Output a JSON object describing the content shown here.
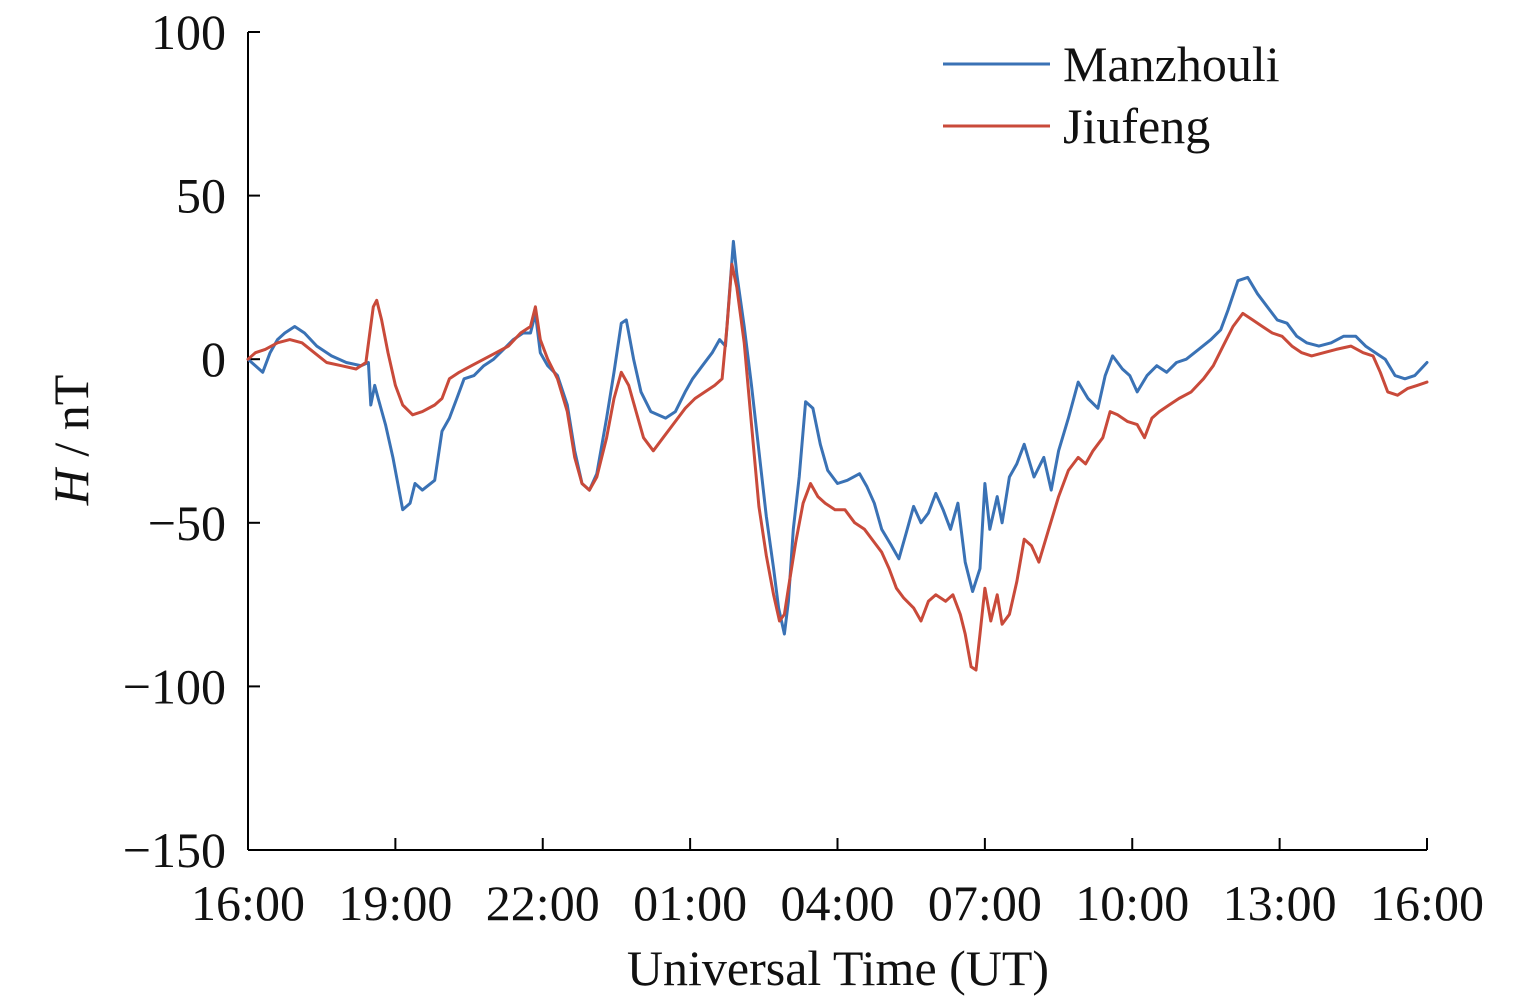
{
  "chart_data": {
    "type": "line",
    "xlabel": "Universal Time (UT)",
    "ylabel_italic": "H",
    "ylabel_rest": " / nT",
    "x_ticks": [
      "16:00",
      "19:00",
      "22:00",
      "01:00",
      "04:00",
      "07:00",
      "10:00",
      "13:00",
      "16:00"
    ],
    "x_tick_hours": [
      0,
      3,
      6,
      9,
      12,
      15,
      18,
      21,
      24
    ],
    "xlim": [
      0,
      24
    ],
    "y_ticks": [
      100,
      50,
      0,
      -50,
      -100,
      -150
    ],
    "y_tick_labels": [
      "100",
      "50",
      "0",
      "−50",
      "−100",
      "−150"
    ],
    "ylim": [
      -150,
      100
    ],
    "grid": false,
    "legend_position": "top-right",
    "series": [
      {
        "name": "Manzhouli",
        "color": "#3a72b5",
        "points": [
          [
            0.0,
            0
          ],
          [
            0.15,
            -2
          ],
          [
            0.3,
            -4
          ],
          [
            0.45,
            2
          ],
          [
            0.6,
            6
          ],
          [
            0.75,
            8
          ],
          [
            0.95,
            10
          ],
          [
            1.15,
            8
          ],
          [
            1.4,
            4
          ],
          [
            1.7,
            1
          ],
          [
            2.0,
            -1
          ],
          [
            2.3,
            -2
          ],
          [
            2.45,
            -1
          ],
          [
            2.5,
            -14
          ],
          [
            2.58,
            -8
          ],
          [
            2.65,
            -12
          ],
          [
            2.8,
            -20
          ],
          [
            2.95,
            -30
          ],
          [
            3.05,
            -38
          ],
          [
            3.15,
            -46
          ],
          [
            3.3,
            -44
          ],
          [
            3.4,
            -38
          ],
          [
            3.55,
            -40
          ],
          [
            3.8,
            -37
          ],
          [
            3.95,
            -22
          ],
          [
            4.1,
            -18
          ],
          [
            4.25,
            -12
          ],
          [
            4.4,
            -6
          ],
          [
            4.6,
            -5
          ],
          [
            4.8,
            -2
          ],
          [
            5.0,
            0
          ],
          [
            5.2,
            3
          ],
          [
            5.4,
            6
          ],
          [
            5.6,
            8
          ],
          [
            5.75,
            8
          ],
          [
            5.85,
            14
          ],
          [
            5.95,
            2
          ],
          [
            6.1,
            -2
          ],
          [
            6.3,
            -5
          ],
          [
            6.5,
            -14
          ],
          [
            6.65,
            -28
          ],
          [
            6.8,
            -38
          ],
          [
            6.95,
            -40
          ],
          [
            7.1,
            -35
          ],
          [
            7.3,
            -18
          ],
          [
            7.45,
            -4
          ],
          [
            7.6,
            11
          ],
          [
            7.7,
            12
          ],
          [
            7.85,
            0
          ],
          [
            8.0,
            -10
          ],
          [
            8.2,
            -16
          ],
          [
            8.5,
            -18
          ],
          [
            8.7,
            -16
          ],
          [
            8.9,
            -10
          ],
          [
            9.05,
            -6
          ],
          [
            9.25,
            -2
          ],
          [
            9.45,
            2
          ],
          [
            9.6,
            6
          ],
          [
            9.72,
            4
          ],
          [
            9.8,
            20
          ],
          [
            9.88,
            36
          ],
          [
            9.95,
            26
          ],
          [
            10.1,
            10
          ],
          [
            10.25,
            -8
          ],
          [
            10.4,
            -28
          ],
          [
            10.55,
            -48
          ],
          [
            10.7,
            -64
          ],
          [
            10.8,
            -76
          ],
          [
            10.92,
            -84
          ],
          [
            11.0,
            -74
          ],
          [
            11.1,
            -52
          ],
          [
            11.22,
            -36
          ],
          [
            11.35,
            -13
          ],
          [
            11.5,
            -15
          ],
          [
            11.65,
            -26
          ],
          [
            11.8,
            -34
          ],
          [
            12.0,
            -38
          ],
          [
            12.2,
            -37
          ],
          [
            12.45,
            -35
          ],
          [
            12.6,
            -39
          ],
          [
            12.75,
            -44
          ],
          [
            12.9,
            -52
          ],
          [
            13.1,
            -57
          ],
          [
            13.25,
            -61
          ],
          [
            13.4,
            -53
          ],
          [
            13.55,
            -45
          ],
          [
            13.7,
            -50
          ],
          [
            13.85,
            -47
          ],
          [
            14.0,
            -41
          ],
          [
            14.15,
            -46
          ],
          [
            14.3,
            -52
          ],
          [
            14.45,
            -44
          ],
          [
            14.6,
            -62
          ],
          [
            14.75,
            -71
          ],
          [
            14.9,
            -64
          ],
          [
            15.0,
            -38
          ],
          [
            15.1,
            -52
          ],
          [
            15.25,
            -42
          ],
          [
            15.35,
            -50
          ],
          [
            15.5,
            -36
          ],
          [
            15.65,
            -32
          ],
          [
            15.8,
            -26
          ],
          [
            16.0,
            -36
          ],
          [
            16.2,
            -30
          ],
          [
            16.35,
            -40
          ],
          [
            16.5,
            -28
          ],
          [
            16.7,
            -18
          ],
          [
            16.9,
            -7
          ],
          [
            17.1,
            -12
          ],
          [
            17.3,
            -15
          ],
          [
            17.45,
            -5
          ],
          [
            17.6,
            1
          ],
          [
            17.8,
            -3
          ],
          [
            17.95,
            -5
          ],
          [
            18.1,
            -10
          ],
          [
            18.3,
            -5
          ],
          [
            18.5,
            -2
          ],
          [
            18.7,
            -4
          ],
          [
            18.9,
            -1
          ],
          [
            19.1,
            0
          ],
          [
            19.35,
            3
          ],
          [
            19.6,
            6
          ],
          [
            19.8,
            9
          ],
          [
            19.95,
            15
          ],
          [
            20.15,
            24
          ],
          [
            20.35,
            25
          ],
          [
            20.55,
            20
          ],
          [
            20.75,
            16
          ],
          [
            20.95,
            12
          ],
          [
            21.15,
            11
          ],
          [
            21.35,
            7
          ],
          [
            21.55,
            5
          ],
          [
            21.8,
            4
          ],
          [
            22.05,
            5
          ],
          [
            22.3,
            7
          ],
          [
            22.55,
            7
          ],
          [
            22.75,
            4
          ],
          [
            22.95,
            2
          ],
          [
            23.15,
            0
          ],
          [
            23.35,
            -5
          ],
          [
            23.55,
            -6
          ],
          [
            23.75,
            -5
          ],
          [
            24.0,
            -1
          ]
        ]
      },
      {
        "name": "Jiufeng",
        "color": "#c94a3a",
        "points": [
          [
            0.0,
            0
          ],
          [
            0.15,
            2
          ],
          [
            0.35,
            3
          ],
          [
            0.6,
            5
          ],
          [
            0.85,
            6
          ],
          [
            1.1,
            5
          ],
          [
            1.35,
            2
          ],
          [
            1.6,
            -1
          ],
          [
            1.9,
            -2
          ],
          [
            2.2,
            -3
          ],
          [
            2.4,
            -1
          ],
          [
            2.48,
            8
          ],
          [
            2.55,
            16
          ],
          [
            2.62,
            18
          ],
          [
            2.72,
            12
          ],
          [
            2.85,
            2
          ],
          [
            3.0,
            -8
          ],
          [
            3.15,
            -14
          ],
          [
            3.35,
            -17
          ],
          [
            3.55,
            -16
          ],
          [
            3.8,
            -14
          ],
          [
            3.95,
            -12
          ],
          [
            4.1,
            -6
          ],
          [
            4.3,
            -4
          ],
          [
            4.55,
            -2
          ],
          [
            4.8,
            0
          ],
          [
            5.05,
            2
          ],
          [
            5.3,
            4
          ],
          [
            5.55,
            8
          ],
          [
            5.75,
            10
          ],
          [
            5.85,
            16
          ],
          [
            5.95,
            6
          ],
          [
            6.1,
            0
          ],
          [
            6.3,
            -6
          ],
          [
            6.5,
            -16
          ],
          [
            6.65,
            -30
          ],
          [
            6.8,
            -38
          ],
          [
            6.95,
            -40
          ],
          [
            7.1,
            -36
          ],
          [
            7.3,
            -24
          ],
          [
            7.45,
            -12
          ],
          [
            7.6,
            -4
          ],
          [
            7.75,
            -8
          ],
          [
            7.9,
            -16
          ],
          [
            8.05,
            -24
          ],
          [
            8.25,
            -28
          ],
          [
            8.45,
            -24
          ],
          [
            8.7,
            -19
          ],
          [
            8.9,
            -15
          ],
          [
            9.1,
            -12
          ],
          [
            9.3,
            -10
          ],
          [
            9.5,
            -8
          ],
          [
            9.65,
            -6
          ],
          [
            9.75,
            10
          ],
          [
            9.85,
            29
          ],
          [
            9.95,
            22
          ],
          [
            10.1,
            5
          ],
          [
            10.25,
            -20
          ],
          [
            10.4,
            -45
          ],
          [
            10.55,
            -60
          ],
          [
            10.7,
            -72
          ],
          [
            10.82,
            -80
          ],
          [
            10.92,
            -78
          ],
          [
            11.0,
            -70
          ],
          [
            11.15,
            -56
          ],
          [
            11.3,
            -44
          ],
          [
            11.45,
            -38
          ],
          [
            11.6,
            -42
          ],
          [
            11.75,
            -44
          ],
          [
            11.95,
            -46
          ],
          [
            12.15,
            -46
          ],
          [
            12.35,
            -50
          ],
          [
            12.55,
            -52
          ],
          [
            12.75,
            -56
          ],
          [
            12.9,
            -59
          ],
          [
            13.05,
            -64
          ],
          [
            13.2,
            -70
          ],
          [
            13.35,
            -73
          ],
          [
            13.55,
            -76
          ],
          [
            13.7,
            -80
          ],
          [
            13.85,
            -74
          ],
          [
            14.0,
            -72
          ],
          [
            14.2,
            -74
          ],
          [
            14.35,
            -72
          ],
          [
            14.5,
            -78
          ],
          [
            14.6,
            -84
          ],
          [
            14.72,
            -94
          ],
          [
            14.82,
            -95
          ],
          [
            14.9,
            -84
          ],
          [
            15.0,
            -70
          ],
          [
            15.12,
            -80
          ],
          [
            15.25,
            -72
          ],
          [
            15.35,
            -81
          ],
          [
            15.5,
            -78
          ],
          [
            15.65,
            -68
          ],
          [
            15.8,
            -55
          ],
          [
            15.95,
            -57
          ],
          [
            16.1,
            -62
          ],
          [
            16.3,
            -52
          ],
          [
            16.5,
            -42
          ],
          [
            16.7,
            -34
          ],
          [
            16.9,
            -30
          ],
          [
            17.05,
            -32
          ],
          [
            17.2,
            -28
          ],
          [
            17.4,
            -24
          ],
          [
            17.55,
            -16
          ],
          [
            17.7,
            -17
          ],
          [
            17.9,
            -19
          ],
          [
            18.1,
            -20
          ],
          [
            18.25,
            -24
          ],
          [
            18.4,
            -18
          ],
          [
            18.55,
            -16
          ],
          [
            18.75,
            -14
          ],
          [
            18.95,
            -12
          ],
          [
            19.2,
            -10
          ],
          [
            19.45,
            -6
          ],
          [
            19.65,
            -2
          ],
          [
            19.85,
            4
          ],
          [
            20.05,
            10
          ],
          [
            20.25,
            14
          ],
          [
            20.45,
            12
          ],
          [
            20.65,
            10
          ],
          [
            20.85,
            8
          ],
          [
            21.05,
            7
          ],
          [
            21.25,
            4
          ],
          [
            21.45,
            2
          ],
          [
            21.65,
            1
          ],
          [
            21.9,
            2
          ],
          [
            22.15,
            3
          ],
          [
            22.45,
            4
          ],
          [
            22.7,
            2
          ],
          [
            22.9,
            1
          ],
          [
            23.05,
            -4
          ],
          [
            23.2,
            -10
          ],
          [
            23.4,
            -11
          ],
          [
            23.6,
            -9
          ],
          [
            23.8,
            -8
          ],
          [
            24.0,
            -7
          ]
        ]
      }
    ]
  }
}
